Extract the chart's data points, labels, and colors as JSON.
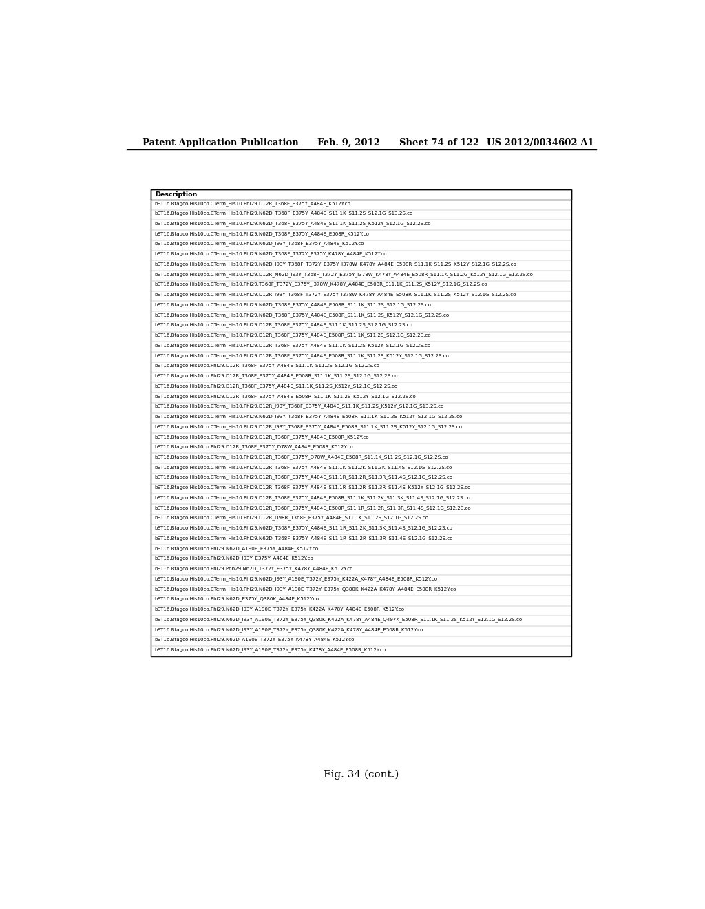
{
  "header_text": "Patent Application Publication",
  "header_date": "Feb. 9, 2012",
  "header_sheet": "Sheet 74 of 122",
  "header_patent": "US 2012/0034602 A1",
  "figure_label": "Fig. 34 (cont.)",
  "table_header": "Description",
  "rows": [
    "bET16.Btagco.His10co.CTerm_His10.Phi29.D12R_T368F_E375Y_A484E_K512Y.co",
    "bET16.Btagco.His10co.CTerm_His10.Phi29.N62D_T368F_E375Y_A484E_S11.1K_S11.2S_S12.1G_S13.2S.co",
    "bET16.Btagco.His10co.CTerm_His10.Phi29.N62D_T368F_E375Y_A484E_S11.1K_S11.2S_K512Y_S12.1G_S12.2S.co",
    "bET16.Btagco.His10co.CTerm_His10.Phi29.N62D_T368F_E375Y_A484E_E508R_K512Y.co",
    "bET16.Btagco.His10co.CTerm_His10.Phi29.N62D_I93Y_T368F_E375Y_A484E_K512Y.co",
    "bET16.Btagco.His10co.CTerm_His10.Phi29.N62D_T368F_T372Y_E375Y_K478Y_A484E_K512Y.co",
    "bET16.Btagco.His10co.CTerm_His10.Phi29.N62D_I93Y_T368F_T372Y_E375Y_I378W_K478Y_A484E_E508R_S11.1K_S11.2S_K512Y_S12.1G_S12.2S.co",
    "bET16.Btagco.His10co.CTerm_His10.Phi29.D12R_N62D_I93Y_T368F_T372Y_E375Y_I378W_K478Y_A484E_E508R_S11.1K_S11.2G_K512Y_S12.1G_S12.2S.co",
    "bET16.Btagco.His10co.CTerm_His10.Phi29.T368F_T372Y_E375Y_I378W_K478Y_A484B_E508R_S11.1K_S11.2S_K512Y_S12.1G_S12.2S.co",
    "bET16.Btagco.His10co.CTerm_His10.Phi29.D12R_I93Y_T368F_T372Y_E375Y_I378W_K478Y_A484E_E508R_S11.1K_S11.2S_K512Y_S12.1G_S12.2S.co",
    "bET16.Btagco.His10co.CTerm_His10.Phi29.N62D_T368F_E375Y_A484E_E508R_S11.1K_S11.2S_S12.1G_S12.2S.co",
    "bET16.Btagco.His10co.CTerm_His10.Phi29.N62D_T368F_E375Y_A484E_E508R_S11.1K_S11.2S_K512Y_S12.1G_S12.2S.co",
    "bET16.Btagco.His10co.CTerm_His10.Phi29.D12R_T368F_E375Y_A484E_S11.1K_S11.2S_S12.1G_S12.2S.co",
    "bET16.Btagco.His10co.CTerm_His10.Phi29.D12R_T368F_E375Y_A484E_E508R_S11.1K_S11.2S_S12.1G_S12.2S.co",
    "bET16.Btagco.His10co.CTerm_His10.Phi29.D12R_T368F_E375Y_A484E_S11.1K_S11.2S_K512Y_S12.1G_S12.2S.co",
    "bET16.Btagco.His10co.CTerm_His10.Phi29.D12R_T368F_E375Y_A484E_E508R_S11.1K_S11.2S_K512Y_S12.1G_S12.2S.co",
    "bET16.Btagco.His10co.Phi29.D12R_T368F_E375Y_A484E_S11.1K_S11.2S_S12.1G_S12.2S.co",
    "bET16.Btagco.His10co.Phi29.D12R_T368F_E375Y_A484E_E508R_S11.1K_S11.2S_S12.1G_S12.2S.co",
    "bET16.Btagco.His10co.Phi29.D12R_T368F_E375Y_A484E_S11.1K_S11.2S_K512Y_S12.1G_S12.2S.co",
    "bET16.Btagco.His10co.Phi29.D12R_T368F_E375Y_A484E_E508R_S11.1K_S11.2S_K512Y_S12.1G_S12.2S.co",
    "bET16.Btagco.His10co.CTerm_His10.Phi29.D12R_I93Y_T368F_E375Y_A484E_S11.1K_S11.2S_K512Y_S12.1G_S13.2S.co",
    "bET16.Btagco.His10co.CTerm_His10.Phi29.N62D_I93Y_T368F_E375Y_A484E_E508R_S11.1K_S11.2S_K512Y_S12.1G_S12.2S.co",
    "bET16.Btagco.His10co.CTerm_His10.Phi29.D12R_I93Y_T368F_E375Y_A484E_E508R_S11.1K_S11.2S_K512Y_S12.1G_S12.2S.co",
    "bET16.Btagco.His10co.CTerm_His10.Phi29.D12R_T368F_E375Y_A484E_E508R_K512Y.co",
    "bET16.Btagco.His10co.Phi29.D12R_T368F_E375Y_D78W_A484E_E508R_K512Y.co",
    "bET16.Btagco.His10co.CTerm_His10.Phi29.D12R_T368F_E375Y_D78W_A484E_E508R_S11.1K_S11.2S_S12.1G_S12.2S.co",
    "bET16.Btagco.His10co.CTerm_His10.Phi29.D12R_T368F_E375Y_A484E_S11.1K_S11.2K_S11.3K_S11.4S_S12.1G_S12.2S.co",
    "bET16.Btagco.His10co.CTerm_His10.Phi29.D12R_T368F_E375Y_A484E_S11.1R_S11.2R_S11.3R_S11.4S_S12.1G_S12.2S.co",
    "bET16.Btagco.His10co.CTerm_His10.Phi29.D12R_T368F_E375Y_A484E_S11.1R_S11.2R_S11.3R_S11.4S_K512Y_S12.1G_S12.2S.co",
    "bET16.Btagco.His10co.CTerm_His10.Phi29.D12R_T368F_E375Y_A484E_E508R_S11.1K_S11.2K_S11.3K_S11.4S_S12.1G_S12.2S.co",
    "bET16.Btagco.His10co.CTerm_His10.Phi29.D12R_T368F_E375Y_A484E_E508R_S11.1R_S11.2R_S11.3R_S11.4S_S12.1G_S12.2S.co",
    "bET16.Btagco.His10co.CTerm_His10.Phi29.D12R_D98R_T368F_E375Y_A484E_S11.1K_S11.2S_S12.1G_S12.2S.co",
    "bET16.Btagco.His10co.CTerm_His10.Phi29.N62D_T368F_E375Y_A484E_S11.1R_S11.2K_S11.3K_S11.4S_S12.1G_S12.2S.co",
    "bET16.Btagco.His10co.CTerm_His10.Phi29.N62D_T368F_E375Y_A484E_S11.1R_S11.2R_S11.3R_S11.4S_S12.1G_S12.2S.co",
    "bET16.Btagco.His10co.Phi29.N62D_A190E_E375Y_A484E_K512Y.co",
    "bET16.Btagco.His10co.Phi29.N62D_I93Y_E375Y_A484E_K512Y.co",
    "bET16.Btagco.His10co.Phi29.Phn29.N62D_T372Y_E375Y_K478Y_A484E_K512Y.co",
    "bET16.Btagco.His10co.CTerm_His10.Phi29.N62D_I93Y_A190E_T372Y_E375Y_K422A_K478Y_A484E_E508R_K512Y.co",
    "bET16.Btagco.His10co.CTerm_His10.Phi29.N62D_I93Y_A190E_T372Y_E375Y_Q380K_K422A_K478Y_A484E_E508R_K512Y.co",
    "bET16.Btagco.His10co.Phi29.N62D_E375Y_Q380K_A484E_K512Y.co",
    "bET16.Btagco.His10co.Phi29.N62D_I93Y_A190E_T372Y_E375Y_K422A_K478Y_A484E_E508R_K512Y.co",
    "bET16.Btagco.His10co.Phi29.N62D_I93Y_A190E_T372Y_E375Y_Q380K_K422A_K478Y_A484E_Q497K_E508R_S11.1K_S11.2S_K512Y_S12.1G_S12.2S.co",
    "bET16.Btagco.His10co.Phi29.N62D_I93Y_A190E_T372Y_E375Y_Q380K_K422A_K478Y_A484E_E508R_K512Y.co",
    "bET16.Btagco.His10co.Phi29.N62D_A190E_T372Y_E375Y_K478Y_A484E_K512Y.co",
    "bET16.Btagco.His10co.Phi29.N62D_I93Y_A190E_T372Y_E375Y_K478Y_A484E_E508R_K512Y.co"
  ]
}
